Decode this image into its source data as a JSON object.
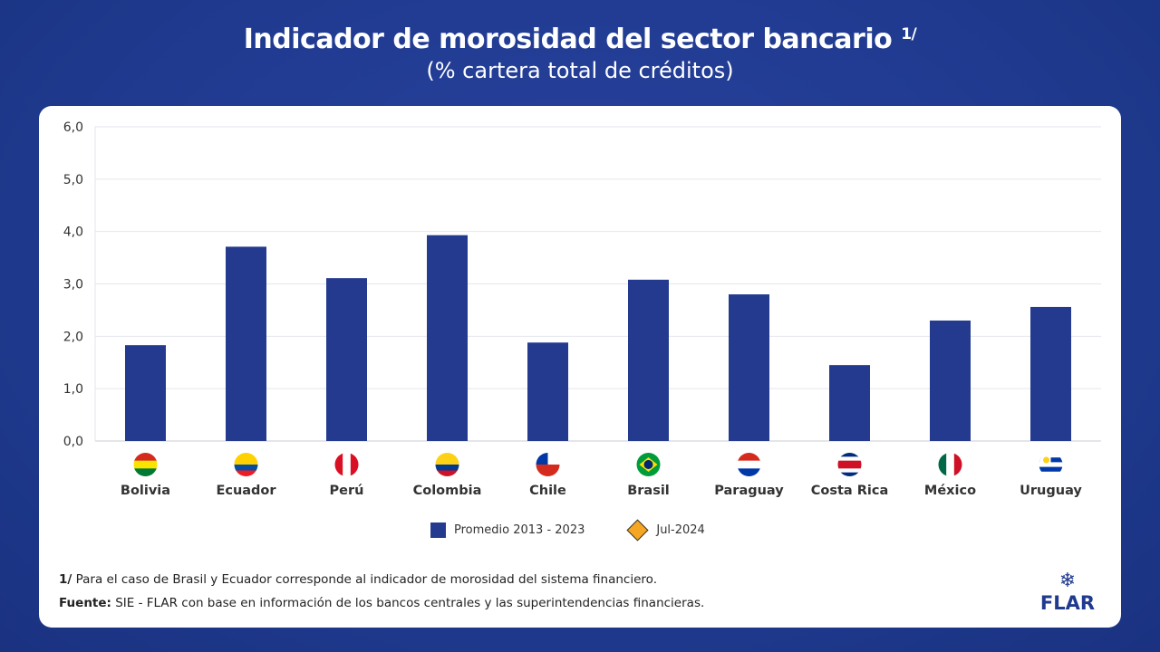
{
  "header": {
    "title": "Indicador de morosidad del sector bancario",
    "title_sup": "1/",
    "subtitle": "(% cartera total de créditos)"
  },
  "chart_data": {
    "type": "bar",
    "title": "Indicador de morosidad del sector bancario 1/",
    "subtitle": "(% cartera total de créditos)",
    "categories": [
      "Bolivia",
      "Ecuador",
      "Perú",
      "Colombia",
      "Chile",
      "Brasil",
      "Paraguay",
      "Costa Rica",
      "México",
      "Uruguay"
    ],
    "series": [
      {
        "name": "Promedio 2013 - 2023",
        "color": "#243a8f",
        "values": [
          1.83,
          3.71,
          3.11,
          3.93,
          1.88,
          3.08,
          2.8,
          1.45,
          2.3,
          2.56
        ]
      }
    ],
    "legend": [
      "Promedio 2013 - 2023",
      "Jul-2024"
    ],
    "legend_colors": {
      "Promedio 2013 - 2023": "#243a8f",
      "Jul-2024": "#f5a623"
    },
    "legend_placement": "bottom",
    "ylim": [
      0,
      6
    ],
    "yticks": [
      "0,0",
      "1,0",
      "2,0",
      "3,0",
      "4,0",
      "5,0",
      "6,0"
    ],
    "grid": true,
    "xlabel": "",
    "ylabel": ""
  },
  "footer": {
    "note_mark": "1/",
    "note_text": " Para el caso de Brasil y Ecuador corresponde al indicador de morosidad del sistema financiero.",
    "source_label": "Fuente:",
    "source_text": " SIE - FLAR con base en información de los bancos centrales y las superintendencias financieras.",
    "logo": "FLAR"
  }
}
